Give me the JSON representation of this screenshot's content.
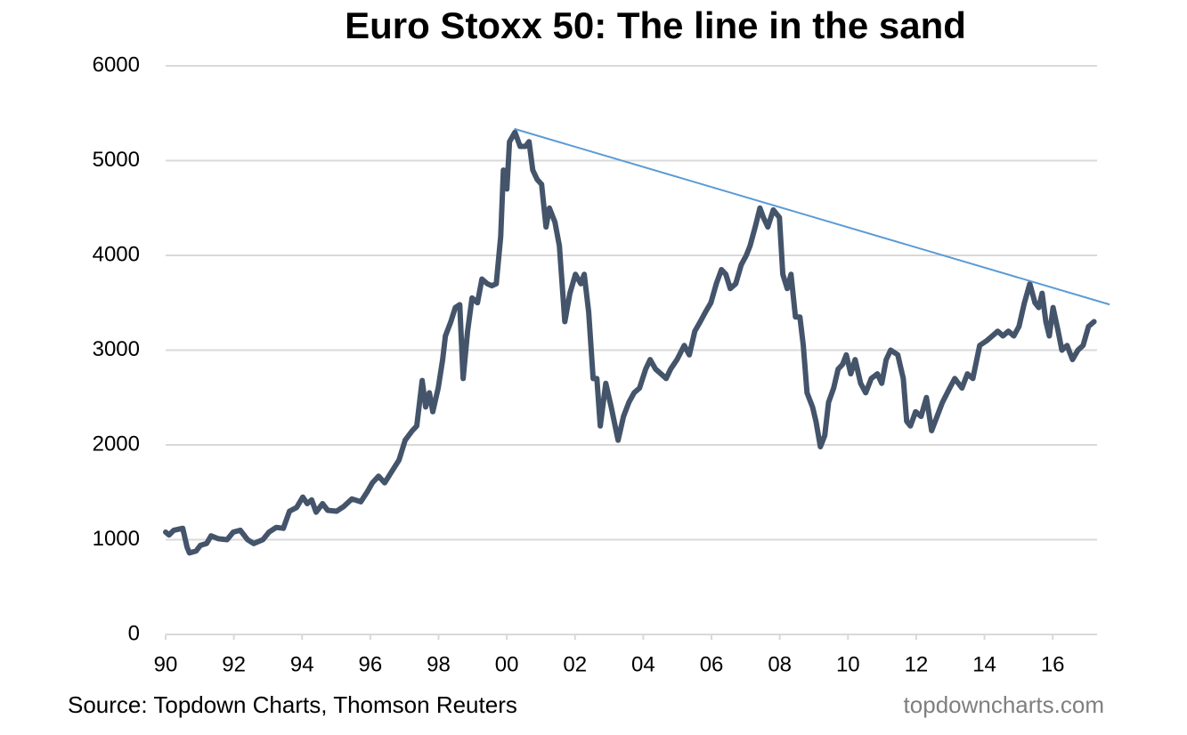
{
  "chart_data": {
    "type": "line",
    "title": "Euro Stoxx 50: The line in the sand",
    "annotations": [
      "Source: Topdown Charts, Thomson Reuters",
      "topdowncharts.com"
    ],
    "xlim": [
      1990,
      2017.3
    ],
    "xticks": [
      {
        "value": 1990,
        "label": "90"
      },
      {
        "value": 1992,
        "label": "92"
      },
      {
        "value": 1994,
        "label": "94"
      },
      {
        "value": 1996,
        "label": "96"
      },
      {
        "value": 1998,
        "label": "98"
      },
      {
        "value": 2000,
        "label": "00"
      },
      {
        "value": 2002,
        "label": "02"
      },
      {
        "value": 2004,
        "label": "04"
      },
      {
        "value": 2006,
        "label": "06"
      },
      {
        "value": 2008,
        "label": "08"
      },
      {
        "value": 2010,
        "label": "10"
      },
      {
        "value": 2012,
        "label": "12"
      },
      {
        "value": 2014,
        "label": "14"
      },
      {
        "value": 2016,
        "label": "16"
      }
    ],
    "ylim": [
      0,
      6000
    ],
    "yticks": [
      0,
      1000,
      2000,
      3000,
      4000,
      5000,
      6000
    ],
    "grid": true,
    "series": [
      {
        "color": "#44546a",
        "width": 6,
        "x": [
          1990.0,
          1990.1,
          1990.24,
          1990.37,
          1990.5,
          1990.63,
          1990.7,
          1990.89,
          1991.02,
          1991.2,
          1991.33,
          1991.54,
          1991.8,
          1991.98,
          1992.19,
          1992.4,
          1992.58,
          1992.85,
          1993.03,
          1993.24,
          1993.45,
          1993.63,
          1993.84,
          1994.02,
          1994.15,
          1994.28,
          1994.41,
          1994.6,
          1994.75,
          1995.01,
          1995.22,
          1995.46,
          1995.72,
          1995.9,
          1996.06,
          1996.24,
          1996.42,
          1996.63,
          1996.84,
          1997.02,
          1997.23,
          1997.36,
          1997.52,
          1997.62,
          1997.73,
          1997.83,
          1997.99,
          1998.12,
          1998.2,
          1998.36,
          1998.49,
          1998.62,
          1998.72,
          1998.85,
          1998.98,
          1999.14,
          1999.27,
          1999.43,
          1999.56,
          1999.69,
          1999.82,
          1999.9,
          2000.0,
          2000.08,
          2000.24,
          2000.39,
          2000.55,
          2000.65,
          2000.76,
          2000.89,
          2001.02,
          2001.15,
          2001.25,
          2001.41,
          2001.54,
          2001.7,
          2001.85,
          2002.01,
          2002.17,
          2002.27,
          2002.4,
          2002.53,
          2002.64,
          2002.74,
          2002.9,
          2003.06,
          2003.26,
          2003.42,
          2003.58,
          2003.73,
          2003.89,
          2004.07,
          2004.2,
          2004.36,
          2004.52,
          2004.67,
          2004.8,
          2004.99,
          2005.2,
          2005.35,
          2005.51,
          2005.67,
          2005.82,
          2005.98,
          2006.14,
          2006.29,
          2006.42,
          2006.55,
          2006.71,
          2006.87,
          2007.02,
          2007.13,
          2007.28,
          2007.42,
          2007.52,
          2007.65,
          2007.81,
          2007.99,
          2008.09,
          2008.22,
          2008.33,
          2008.46,
          2008.59,
          2008.69,
          2008.8,
          2008.96,
          2009.06,
          2009.19,
          2009.32,
          2009.43,
          2009.58,
          2009.71,
          2009.84,
          2009.95,
          2010.08,
          2010.21,
          2010.37,
          2010.52,
          2010.68,
          2010.86,
          2010.99,
          2011.12,
          2011.25,
          2011.46,
          2011.62,
          2011.72,
          2011.83,
          2011.98,
          2012.14,
          2012.3,
          2012.45,
          2012.61,
          2012.77,
          2012.98,
          2013.13,
          2013.34,
          2013.5,
          2013.66,
          2013.86,
          2014.07,
          2014.23,
          2014.39,
          2014.54,
          2014.7,
          2014.86,
          2015.01,
          2015.17,
          2015.33,
          2015.48,
          2015.59,
          2015.69,
          2015.8,
          2015.9,
          2016.01,
          2016.16,
          2016.27,
          2016.42,
          2016.58,
          2016.74,
          2016.89,
          2017.05,
          2017.21
        ],
        "values": [
          1080,
          1050,
          1100,
          1110,
          1120,
          920,
          860,
          880,
          940,
          960,
          1040,
          1010,
          1000,
          1080,
          1100,
          1000,
          960,
          1000,
          1080,
          1130,
          1120,
          1300,
          1340,
          1450,
          1380,
          1420,
          1290,
          1380,
          1310,
          1300,
          1350,
          1430,
          1400,
          1500,
          1600,
          1670,
          1600,
          1720,
          1840,
          2050,
          2150,
          2200,
          2680,
          2400,
          2550,
          2350,
          2600,
          2900,
          3150,
          3300,
          3450,
          3480,
          2700,
          3200,
          3550,
          3500,
          3750,
          3700,
          3680,
          3700,
          4200,
          4900,
          4700,
          5200,
          5300,
          5150,
          5150,
          5200,
          4900,
          4800,
          4750,
          4300,
          4500,
          4350,
          4100,
          3300,
          3600,
          3800,
          3700,
          3800,
          3400,
          2700,
          2700,
          2200,
          2650,
          2400,
          2050,
          2300,
          2450,
          2550,
          2600,
          2800,
          2900,
          2800,
          2750,
          2700,
          2800,
          2900,
          3050,
          2950,
          3200,
          3300,
          3400,
          3500,
          3700,
          3850,
          3800,
          3650,
          3700,
          3900,
          4000,
          4100,
          4300,
          4500,
          4400,
          4300,
          4480,
          4400,
          3800,
          3650,
          3800,
          3350,
          3350,
          3050,
          2550,
          2400,
          2250,
          1980,
          2100,
          2450,
          2600,
          2800,
          2850,
          2950,
          2750,
          2900,
          2650,
          2550,
          2700,
          2750,
          2650,
          2900,
          3000,
          2950,
          2700,
          2250,
          2200,
          2350,
          2300,
          2500,
          2150,
          2300,
          2450,
          2600,
          2700,
          2600,
          2750,
          2700,
          3050,
          3100,
          3150,
          3200,
          3150,
          3200,
          3150,
          3250,
          3500,
          3700,
          3500,
          3450,
          3600,
          3300,
          3150,
          3450,
          3200,
          3000,
          3050,
          2900,
          3000,
          3050,
          3250,
          3300
        ]
      },
      {
        "color": "#5b9bd5",
        "width": 2,
        "x": [
          2000.24,
          2017.65
        ],
        "values": [
          5333,
          3484
        ]
      }
    ]
  }
}
